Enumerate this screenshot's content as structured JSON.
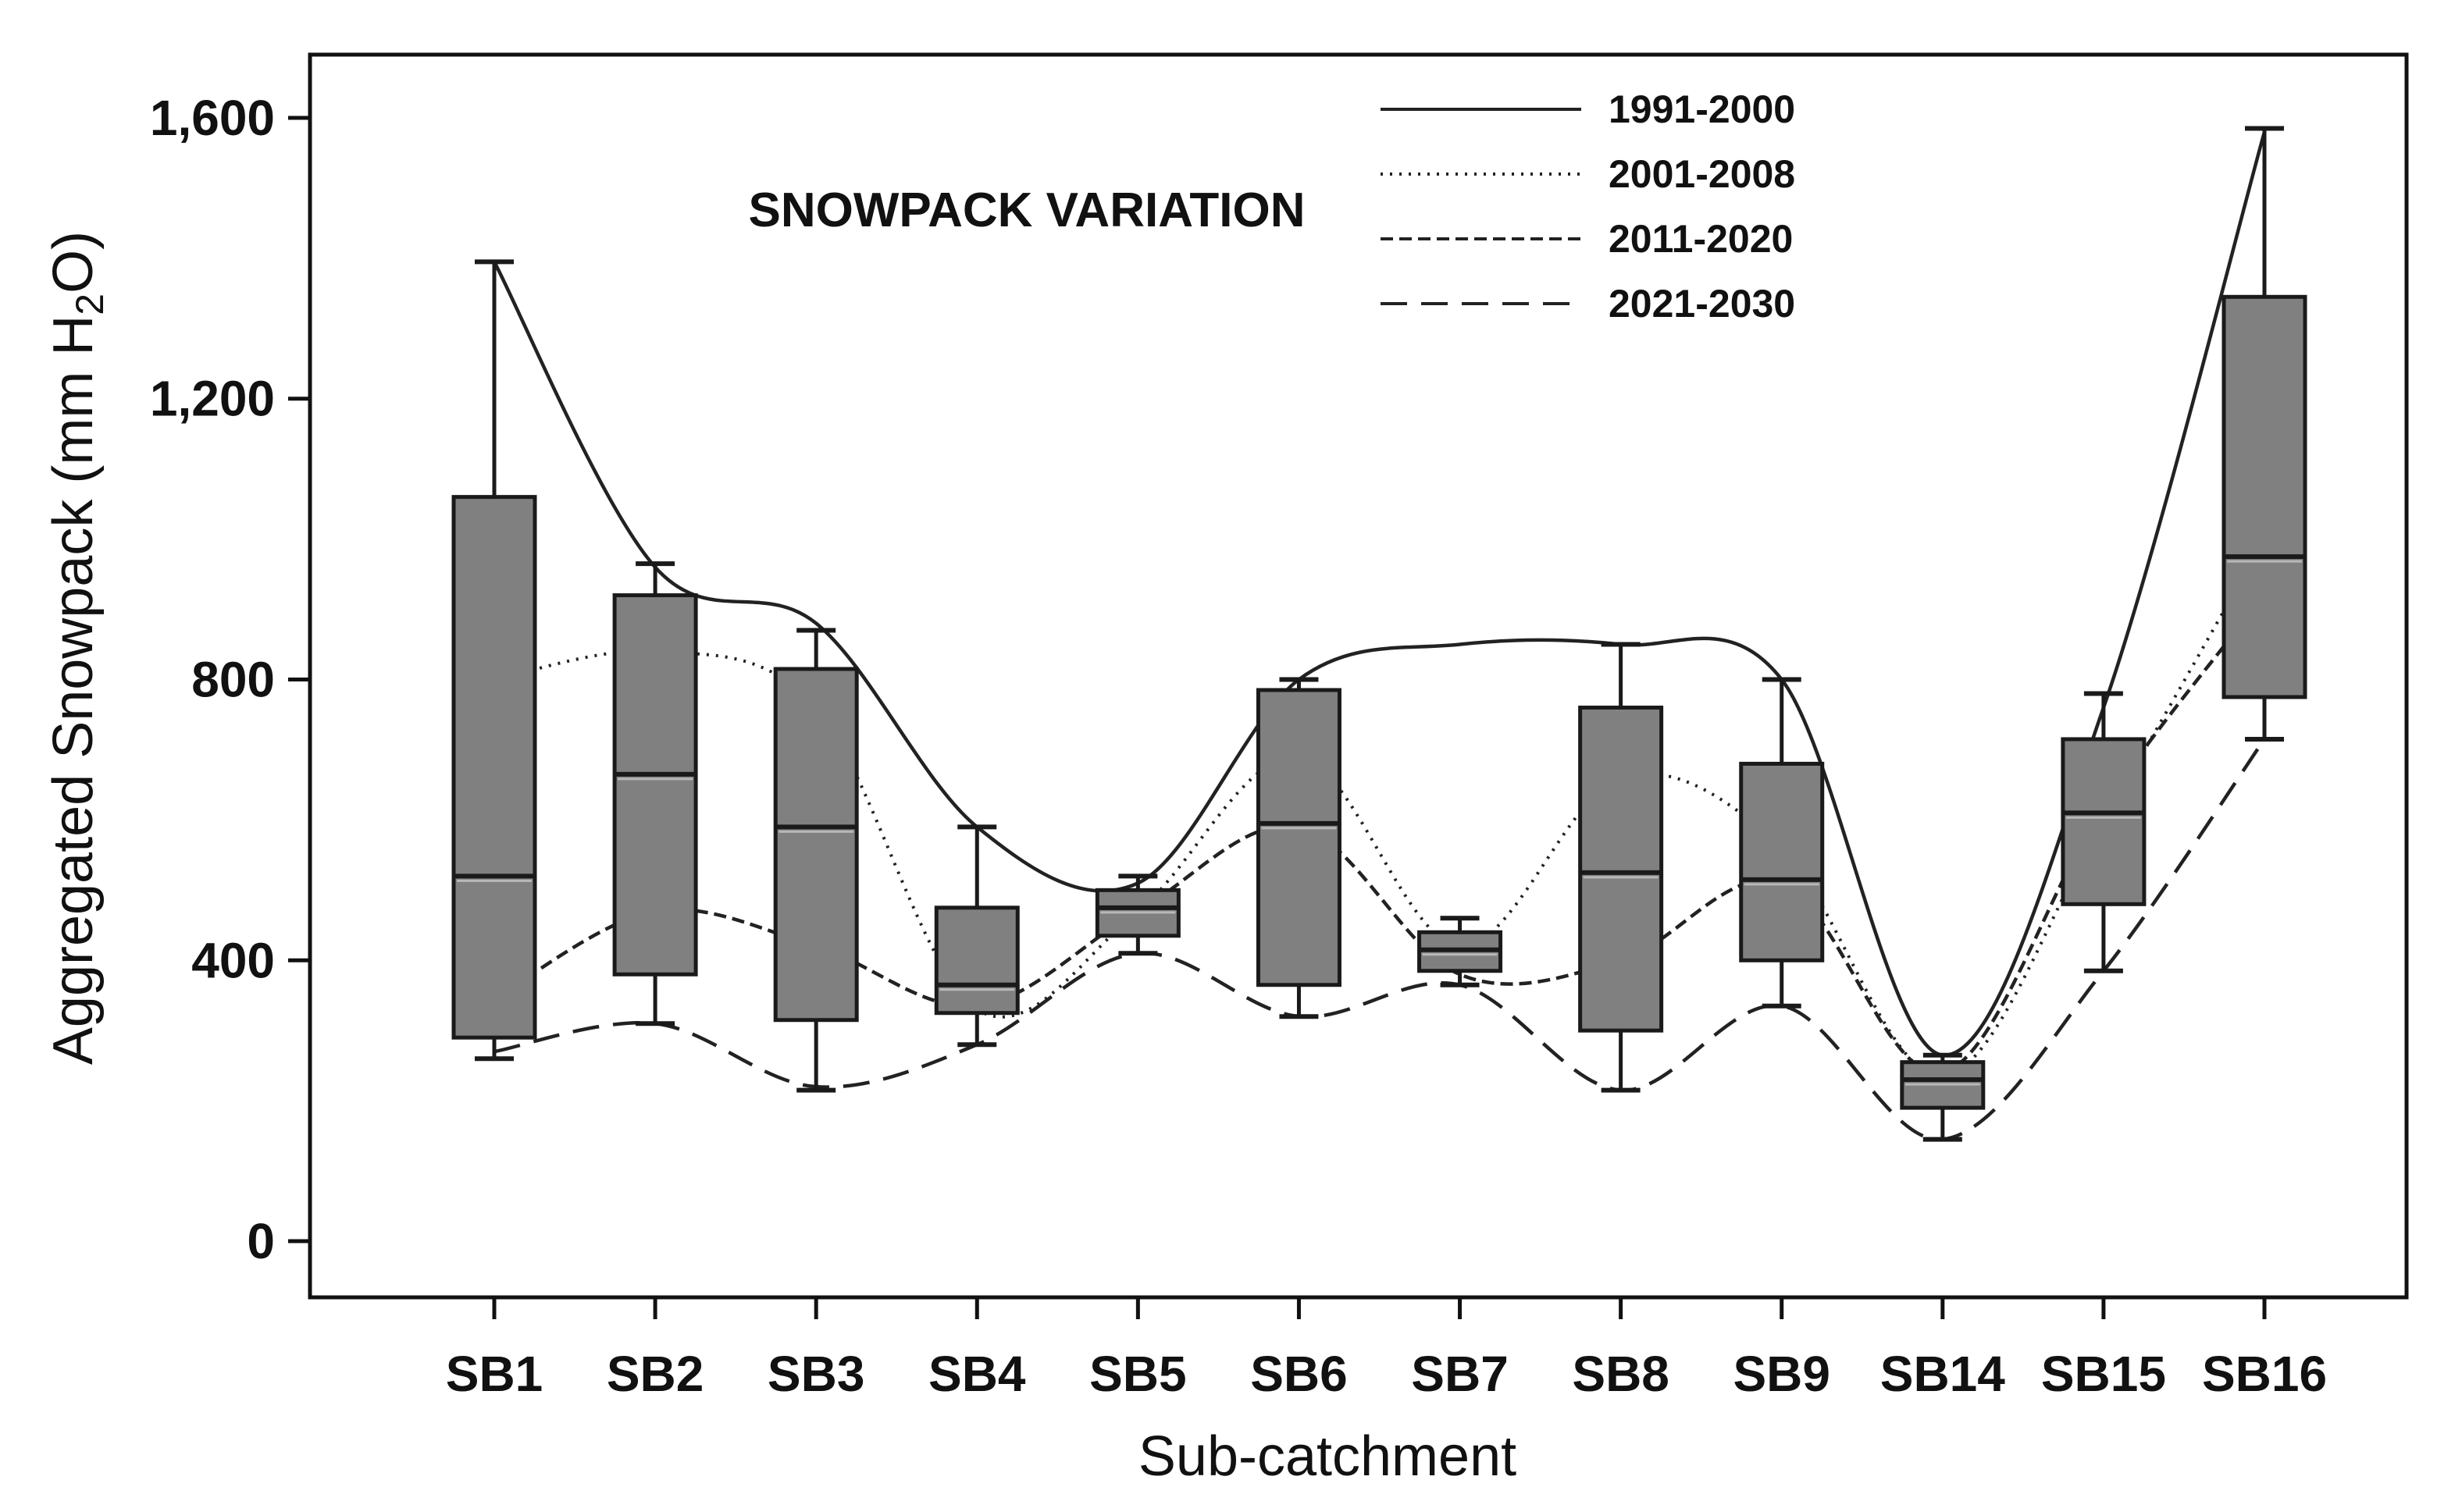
{
  "chart_data": {
    "type": "box",
    "title": "SNOWPACK VARIATION",
    "xlabel": "Sub-catchment",
    "ylabel_prefix": "Aggregated Snowpack (mm H",
    "ylabel_sub": "2",
    "ylabel_suffix": "O)",
    "ylim": [
      -80,
      1690
    ],
    "yticks": [
      0,
      400,
      800,
      1200,
      1600
    ],
    "ytick_labels": [
      "0",
      "400",
      "800",
      "1,200",
      "1,600"
    ],
    "categories": [
      "SB1",
      "SB2",
      "SB3",
      "SB4",
      "SB5",
      "SB6",
      "SB7",
      "SB8",
      "SB9",
      "SB14",
      "SB15",
      "SB16"
    ],
    "boxes": [
      {
        "min": 260,
        "q1": 290,
        "median": 520,
        "q3": 1060,
        "max": 1395
      },
      {
        "min": 310,
        "q1": 380,
        "median": 665,
        "q3": 920,
        "max": 965
      },
      {
        "min": 215,
        "q1": 315,
        "median": 590,
        "q3": 815,
        "max": 870
      },
      {
        "min": 280,
        "q1": 325,
        "median": 365,
        "q3": 475,
        "max": 590
      },
      {
        "min": 410,
        "q1": 435,
        "median": 475,
        "q3": 500,
        "max": 520
      },
      {
        "min": 320,
        "q1": 365,
        "median": 595,
        "q3": 785,
        "max": 800
      },
      {
        "min": 365,
        "q1": 385,
        "median": 415,
        "q3": 440,
        "max": 460
      },
      {
        "min": 215,
        "q1": 300,
        "median": 525,
        "q3": 760,
        "max": 850
      },
      {
        "min": 335,
        "q1": 400,
        "median": 515,
        "q3": 680,
        "max": 800
      },
      {
        "min": 145,
        "q1": 190,
        "median": 230,
        "q3": 255,
        "max": 265
      },
      {
        "min": 385,
        "q1": 480,
        "median": 610,
        "q3": 715,
        "max": 780
      },
      {
        "min": 715,
        "q1": 775,
        "median": 975,
        "q3": 1345,
        "max": 1585
      }
    ],
    "series": [
      {
        "name": "1991-2000",
        "style": "solid",
        "values": [
          1395,
          960,
          880,
          590,
          510,
          800,
          850,
          850,
          800,
          265,
          760,
          1580
        ]
      },
      {
        "name": "2001-2008",
        "style": "dotted",
        "values": [
          800,
          840,
          760,
          330,
          470,
          690,
          420,
          660,
          560,
          235,
          600,
          1000
        ]
      },
      {
        "name": "2011-2020",
        "style": "dashed",
        "values": [
          345,
          470,
          420,
          335,
          470,
          590,
          380,
          400,
          510,
          240,
          620,
          920
        ]
      },
      {
        "name": "2021-2030",
        "style": "longdash",
        "values": [
          270,
          310,
          220,
          280,
          410,
          320,
          365,
          215,
          335,
          145,
          385,
          715
        ]
      }
    ],
    "legend_position": "top-right",
    "colors": {
      "box_fill": "#808080",
      "box_stroke": "#1a1a1a",
      "median_highlight": "#b8b8b8",
      "line": "#222222",
      "frame": "#111111"
    }
  }
}
